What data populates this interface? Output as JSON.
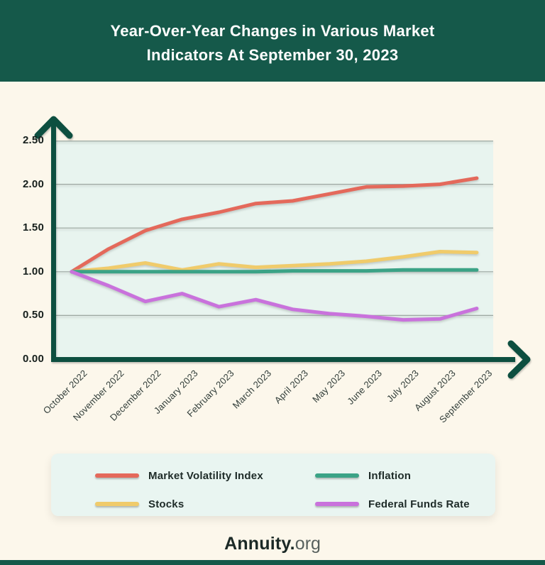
{
  "header": {
    "title_line1": "Year-Over-Year Changes in Various Market",
    "title_line2": "Indicators At September 30, 2023"
  },
  "chart_data": {
    "type": "line",
    "title": "Year-Over-Year Changes in Various Market Indicators At September 30, 2023",
    "x": [
      "October 2022",
      "November 2022",
      "December 2022",
      "January 2023",
      "February 2023",
      "March 2023",
      "April 2023",
      "May 2023",
      "June 2023",
      "July 2023",
      "August 2023",
      "September 2023"
    ],
    "series": [
      {
        "name": "Market Volatility Index",
        "color": "#E4695B",
        "values": [
          1.0,
          1.26,
          1.47,
          1.6,
          1.68,
          1.78,
          1.81,
          1.89,
          1.97,
          1.98,
          2.0,
          2.07
        ]
      },
      {
        "name": "Inflation",
        "color": "#3BA386",
        "values": [
          1.0,
          1.0,
          1.0,
          1.0,
          1.0,
          1.0,
          1.01,
          1.01,
          1.01,
          1.02,
          1.02,
          1.02
        ]
      },
      {
        "name": "Stocks",
        "color": "#F0CB6B",
        "values": [
          1.0,
          1.04,
          1.1,
          1.02,
          1.09,
          1.05,
          1.07,
          1.09,
          1.12,
          1.17,
          1.23,
          1.22
        ]
      },
      {
        "name": "Federal Funds Rate",
        "color": "#C972DC",
        "values": [
          1.0,
          0.84,
          0.66,
          0.75,
          0.6,
          0.68,
          0.57,
          0.52,
          0.49,
          0.45,
          0.46,
          0.58
        ]
      }
    ],
    "ylim": [
      0,
      2.5
    ],
    "yticks": [
      {
        "label": "2.50",
        "value": 2.5
      },
      {
        "label": "2.00",
        "value": 2.0
      },
      {
        "label": "1.50",
        "value": 1.5
      },
      {
        "label": "1.00",
        "value": 1.0
      },
      {
        "label": "0.50",
        "value": 0.5
      },
      {
        "label": "0.00",
        "value": 0.0
      }
    ],
    "grid": true,
    "legend_position": "bottom",
    "draw_order": [
      0,
      2,
      1,
      3
    ]
  },
  "footer": {
    "brand_bold": "Annuity.",
    "brand_light": "org"
  },
  "colors": {
    "header_bg": "#15594A",
    "page_bg": "#FCF7EB",
    "plot_bg": "#E8F4EF",
    "axis": "#0D4F40",
    "gridline": "#9DA8A2",
    "legend_bg": "#E9F5F1",
    "text_dark": "#1B2926"
  }
}
